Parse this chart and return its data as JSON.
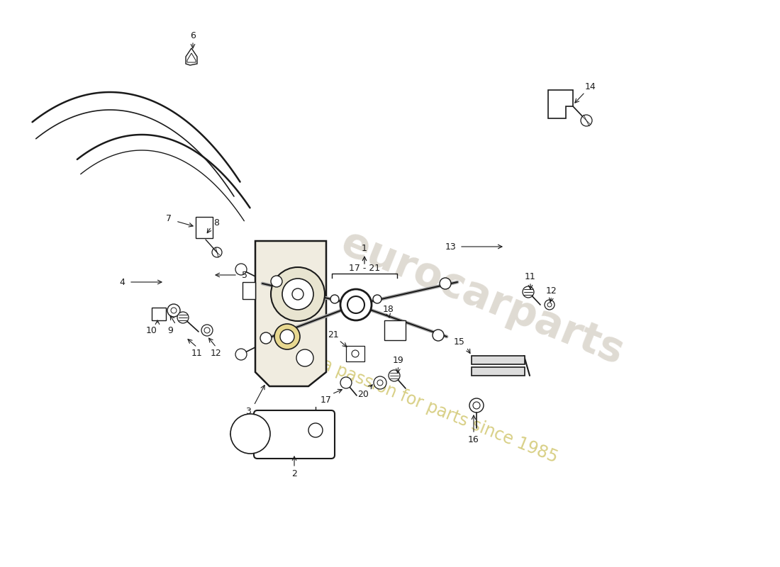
{
  "background_color": "#ffffff",
  "dark": "#1a1a1a",
  "gold": "#c8a830",
  "light_gold": "#e8d890",
  "watermark1": "eurocarparts",
  "watermark2": "a passion for parts since 1985",
  "fig_w": 11.0,
  "fig_h": 8.0,
  "dpi": 100
}
